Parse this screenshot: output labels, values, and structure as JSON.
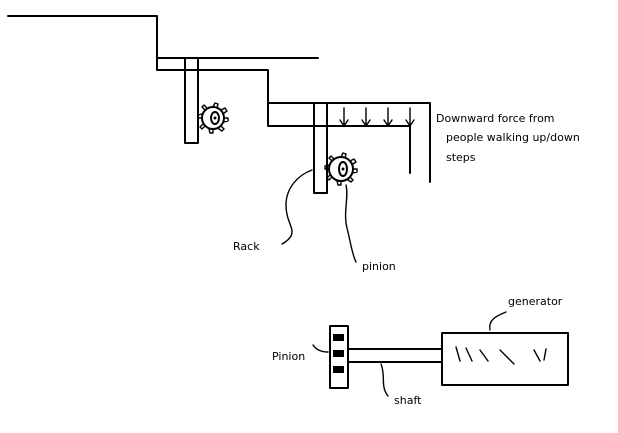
{
  "labels": {
    "force_line1": "Downward force from",
    "force_line2": "people walking up/down",
    "force_line3": "steps",
    "rack": "Rack",
    "pinion_top": "pinion",
    "generator": "generator",
    "pinion_bottom": "Pinion",
    "shaft": "shaft"
  },
  "colors": {
    "ink": "#000000",
    "background": "#ffffff"
  }
}
